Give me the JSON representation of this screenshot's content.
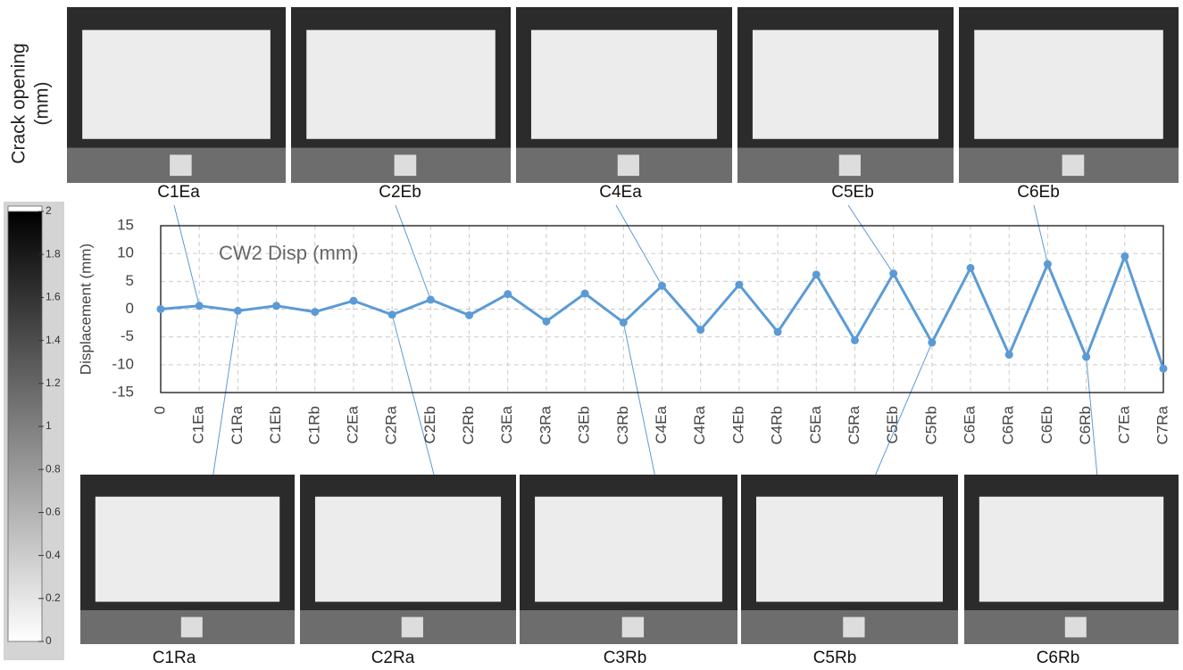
{
  "chart_data": [
    {
      "type": "line",
      "annotation": "CW2 Disp (mm)",
      "y_label": "Displacement (mm)",
      "categories": [
        "0",
        "C1Ea",
        "C1Ra",
        "C1Eb",
        "C1Rb",
        "C2Ea",
        "C2Ra",
        "C2Eb",
        "C2Rb",
        "C3Ea",
        "C3Ra",
        "C3Eb",
        "C3Rb",
        "C4Ea",
        "C4Ra",
        "C4Eb",
        "C4Rb",
        "C5Ea",
        "C5Ra",
        "C5Eb",
        "C5Rb",
        "C6Ea",
        "C6Ra",
        "C6Eb",
        "C6Rb",
        "C7Ea",
        "C7Ra"
      ],
      "series": [
        {
          "name": "CW2 Disp (mm)",
          "color": "#5b9bd5",
          "values": [
            0,
            0.6,
            -0.3,
            0.6,
            -0.5,
            1.5,
            -1.0,
            1.7,
            -1.1,
            2.7,
            -2.2,
            2.8,
            -2.4,
            4.2,
            -3.7,
            4.4,
            -4.1,
            6.2,
            -5.6,
            6.4,
            -6.0,
            7.4,
            -8.2,
            8.1,
            -8.6,
            9.5,
            -10.7
          ]
        }
      ],
      "ylim": [
        -15,
        15
      ],
      "yticks": [
        -15,
        -10,
        -5,
        0,
        5,
        10,
        15
      ],
      "grid": true
    },
    {
      "type": "colorbar",
      "title_lines": [
        "Crack opening",
        "(mm)"
      ],
      "ylim": [
        0,
        2
      ],
      "yticks": [
        0,
        0.2,
        0.4,
        0.6,
        0.8,
        1,
        1.2,
        1.4,
        1.6,
        1.8,
        2
      ]
    }
  ],
  "photos": {
    "top": [
      "C1Ea",
      "C2Eb",
      "C4Ea",
      "C5Eb",
      "C6Eb"
    ],
    "bottom": [
      "C1Ra",
      "C2Ra",
      "C3Rb",
      "C5Rb",
      "C6Rb"
    ]
  }
}
